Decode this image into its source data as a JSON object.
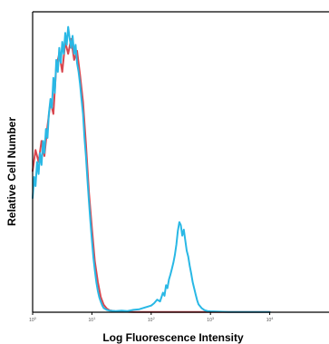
{
  "chart_data": {
    "type": "line",
    "title": "",
    "xlabel": "Log Fluorescence Intensity",
    "ylabel": "Relative Cell Number",
    "x_scale": "log",
    "xlim": [
      1,
      100000
    ],
    "ylim": [
      0,
      100
    ],
    "x_ticks": [
      {
        "value": 1,
        "label": "10^0"
      },
      {
        "value": 10,
        "label": "10^1"
      },
      {
        "value": 100,
        "label": "10^2"
      },
      {
        "value": 1000,
        "label": "10^3"
      },
      {
        "value": 10000,
        "label": "10^4"
      }
    ],
    "grid": false,
    "legend": "none",
    "series": [
      {
        "color": "#d9474f",
        "points": [
          [
            1.0,
            47
          ],
          [
            1.12,
            54
          ],
          [
            1.26,
            50
          ],
          [
            1.41,
            57
          ],
          [
            1.58,
            52
          ],
          [
            1.78,
            62
          ],
          [
            2.0,
            70
          ],
          [
            2.24,
            66
          ],
          [
            2.51,
            82
          ],
          [
            2.82,
            86
          ],
          [
            3.16,
            80
          ],
          [
            3.55,
            90
          ],
          [
            3.98,
            86
          ],
          [
            4.47,
            91
          ],
          [
            5.01,
            84
          ],
          [
            5.62,
            87
          ],
          [
            6.31,
            79
          ],
          [
            7.08,
            70
          ],
          [
            7.94,
            56
          ],
          [
            8.91,
            40
          ],
          [
            10.0,
            28
          ],
          [
            11.2,
            17
          ],
          [
            12.6,
            10
          ],
          [
            14.1,
            5
          ],
          [
            15.8,
            2.5
          ],
          [
            17.8,
            1.2
          ],
          [
            20.0,
            0.6
          ],
          [
            25.1,
            0.3
          ],
          [
            31.6,
            0.2
          ],
          [
            50.1,
            0.1
          ],
          [
            100,
            0.1
          ],
          [
            1000,
            0.1
          ],
          [
            10000,
            0.1
          ]
        ]
      },
      {
        "color": "#29b8e5",
        "points": [
          [
            1.0,
            38
          ],
          [
            1.06,
            45
          ],
          [
            1.12,
            42
          ],
          [
            1.19,
            50
          ],
          [
            1.26,
            46
          ],
          [
            1.33,
            53
          ],
          [
            1.41,
            49
          ],
          [
            1.5,
            57
          ],
          [
            1.58,
            53
          ],
          [
            1.68,
            61
          ],
          [
            1.78,
            58
          ],
          [
            1.88,
            66
          ],
          [
            2.0,
            71
          ],
          [
            2.11,
            68
          ],
          [
            2.24,
            78
          ],
          [
            2.37,
            73
          ],
          [
            2.51,
            84
          ],
          [
            2.66,
            80
          ],
          [
            2.82,
            88
          ],
          [
            2.99,
            83
          ],
          [
            3.16,
            90
          ],
          [
            3.35,
            86
          ],
          [
            3.55,
            93
          ],
          [
            3.76,
            89
          ],
          [
            3.98,
            95
          ],
          [
            4.22,
            91
          ],
          [
            4.47,
            88
          ],
          [
            4.73,
            92
          ],
          [
            5.01,
            86
          ],
          [
            5.31,
            89
          ],
          [
            5.62,
            83
          ],
          [
            5.96,
            80
          ],
          [
            6.31,
            76
          ],
          [
            6.68,
            71
          ],
          [
            7.08,
            66
          ],
          [
            7.5,
            58
          ],
          [
            7.94,
            52
          ],
          [
            8.41,
            44
          ],
          [
            8.91,
            37
          ],
          [
            9.44,
            30
          ],
          [
            10.0,
            24
          ],
          [
            10.6,
            18
          ],
          [
            11.2,
            14
          ],
          [
            11.9,
            10
          ],
          [
            12.6,
            7
          ],
          [
            13.3,
            5
          ],
          [
            14.1,
            3.5
          ],
          [
            15.0,
            2.2
          ],
          [
            15.8,
            1.4
          ],
          [
            17.8,
            0.8
          ],
          [
            20.0,
            0.5
          ],
          [
            25.1,
            0.4
          ],
          [
            31.6,
            0.5
          ],
          [
            39.8,
            0.4
          ],
          [
            50.1,
            0.8
          ],
          [
            63.1,
            1.0
          ],
          [
            79.4,
            1.6
          ],
          [
            100,
            2.2
          ],
          [
            112,
            3.0
          ],
          [
            126,
            4.2
          ],
          [
            141,
            3.6
          ],
          [
            158,
            6.5
          ],
          [
            168,
            5.5
          ],
          [
            178,
            9.0
          ],
          [
            188,
            8.0
          ],
          [
            200,
            11.0
          ],
          [
            211,
            12.5
          ],
          [
            224,
            14.5
          ],
          [
            237,
            16.5
          ],
          [
            251,
            19.0
          ],
          [
            266,
            22.5
          ],
          [
            282,
            27.0
          ],
          [
            299,
            30.0
          ],
          [
            316,
            29.0
          ],
          [
            335,
            25.5
          ],
          [
            355,
            27.5
          ],
          [
            376,
            24.0
          ],
          [
            398,
            20.5
          ],
          [
            422,
            18.5
          ],
          [
            447,
            15.5
          ],
          [
            473,
            13.0
          ],
          [
            501,
            10.0
          ],
          [
            531,
            8.0
          ],
          [
            562,
            6.0
          ],
          [
            596,
            4.0
          ],
          [
            631,
            2.6
          ],
          [
            708,
            1.4
          ],
          [
            794,
            0.7
          ],
          [
            891,
            0.4
          ],
          [
            1000,
            0.3
          ],
          [
            1260,
            0.2
          ],
          [
            2000,
            0.1
          ],
          [
            5000,
            0.1
          ],
          [
            10000,
            0.1
          ]
        ]
      }
    ]
  }
}
